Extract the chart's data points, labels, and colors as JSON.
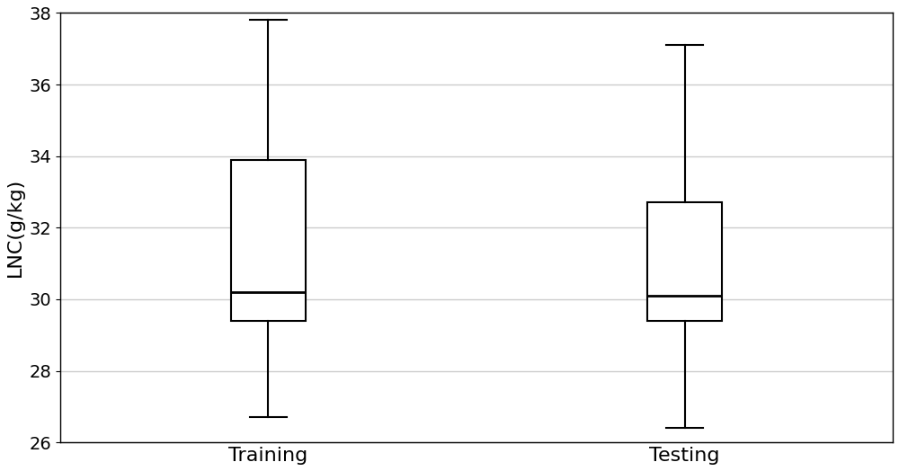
{
  "categories": [
    "Training",
    "Testing"
  ],
  "boxes": [
    {
      "label": "Training",
      "whislo": 26.7,
      "q1": 29.4,
      "med": 30.2,
      "q3": 33.9,
      "whishi": 37.8,
      "fliers": []
    },
    {
      "label": "Testing",
      "whislo": 26.4,
      "q1": 29.4,
      "med": 30.1,
      "q3": 32.7,
      "whishi": 37.1,
      "fliers": []
    }
  ],
  "ylabel": "LNC(g/kg)",
  "ylim": [
    26,
    38
  ],
  "yticks": [
    26,
    28,
    30,
    32,
    34,
    36,
    38
  ],
  "grid_color": "#cccccc",
  "box_color": "#000000",
  "box_fill": "#ffffff",
  "median_color": "#000000",
  "whisker_color": "#000000",
  "cap_color": "#000000",
  "background_color": "#ffffff",
  "box_width": 0.18,
  "linewidth": 1.5,
  "median_linewidth": 2.0,
  "positions": [
    1,
    2
  ],
  "xlabel_fontsize": 16,
  "ylabel_fontsize": 16,
  "tick_fontsize": 14,
  "xlim": [
    0.5,
    2.5
  ]
}
